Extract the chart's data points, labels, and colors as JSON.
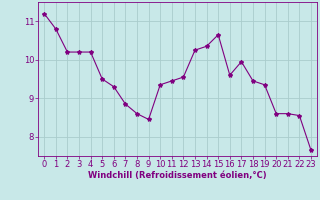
{
  "x": [
    0,
    1,
    2,
    3,
    4,
    5,
    6,
    7,
    8,
    9,
    10,
    11,
    12,
    13,
    14,
    15,
    16,
    17,
    18,
    19,
    20,
    21,
    22,
    23
  ],
  "y": [
    11.2,
    10.8,
    10.2,
    10.2,
    10.2,
    9.5,
    9.3,
    8.85,
    8.6,
    8.45,
    9.35,
    9.45,
    9.55,
    10.25,
    10.35,
    10.65,
    9.6,
    9.95,
    9.45,
    9.35,
    8.6,
    8.6,
    8.55,
    7.65
  ],
  "line_color": "#800080",
  "marker": "*",
  "marker_size": 3,
  "bg_color": "#c8e8e8",
  "grid_color": "#aacccc",
  "xlabel": "Windchill (Refroidissement éolien,°C)",
  "xlim": [
    -0.5,
    23.5
  ],
  "ylim": [
    7.5,
    11.5
  ],
  "yticks": [
    8,
    9,
    10,
    11
  ],
  "xticks": [
    0,
    1,
    2,
    3,
    4,
    5,
    6,
    7,
    8,
    9,
    10,
    11,
    12,
    13,
    14,
    15,
    16,
    17,
    18,
    19,
    20,
    21,
    22,
    23
  ],
  "label_fontsize": 6,
  "tick_fontsize": 6,
  "line_width": 0.8
}
